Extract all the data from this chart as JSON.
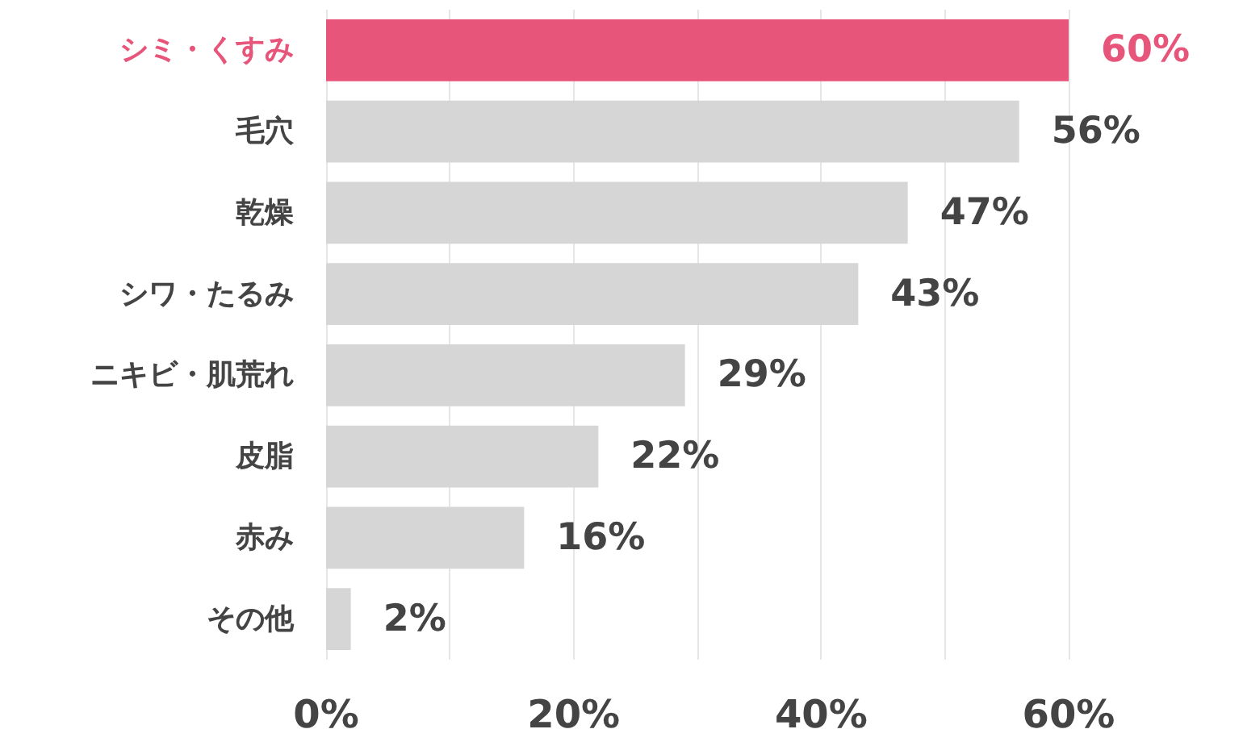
{
  "chart_data": {
    "type": "bar",
    "orientation": "horizontal",
    "categories": [
      "シミ・くすみ",
      "毛穴",
      "乾燥",
      "シワ・たるみ",
      "ニキビ・肌荒れ",
      "皮脂",
      "赤み",
      "その他"
    ],
    "values": [
      60,
      56,
      47,
      43,
      29,
      22,
      16,
      2
    ],
    "colors": [
      "#e8557a",
      "#d6d6d6",
      "#d6d6d6",
      "#d6d6d6",
      "#d6d6d6",
      "#d6d6d6",
      "#d6d6d6",
      "#d6d6d6"
    ],
    "value_labels": [
      "60%",
      "56%",
      "47%",
      "43%",
      "29%",
      "22%",
      "16%",
      "2%"
    ],
    "xlim": [
      0,
      60
    ],
    "xticks": [
      {
        "value": 0,
        "label": "0%"
      },
      {
        "value": 10,
        "label": null
      },
      {
        "value": 20,
        "label": "20%"
      },
      {
        "value": 30,
        "label": null
      },
      {
        "value": 40,
        "label": "40%"
      },
      {
        "value": 50,
        "label": null
      },
      {
        "value": 60,
        "label": "60%"
      }
    ],
    "grid": "x"
  }
}
